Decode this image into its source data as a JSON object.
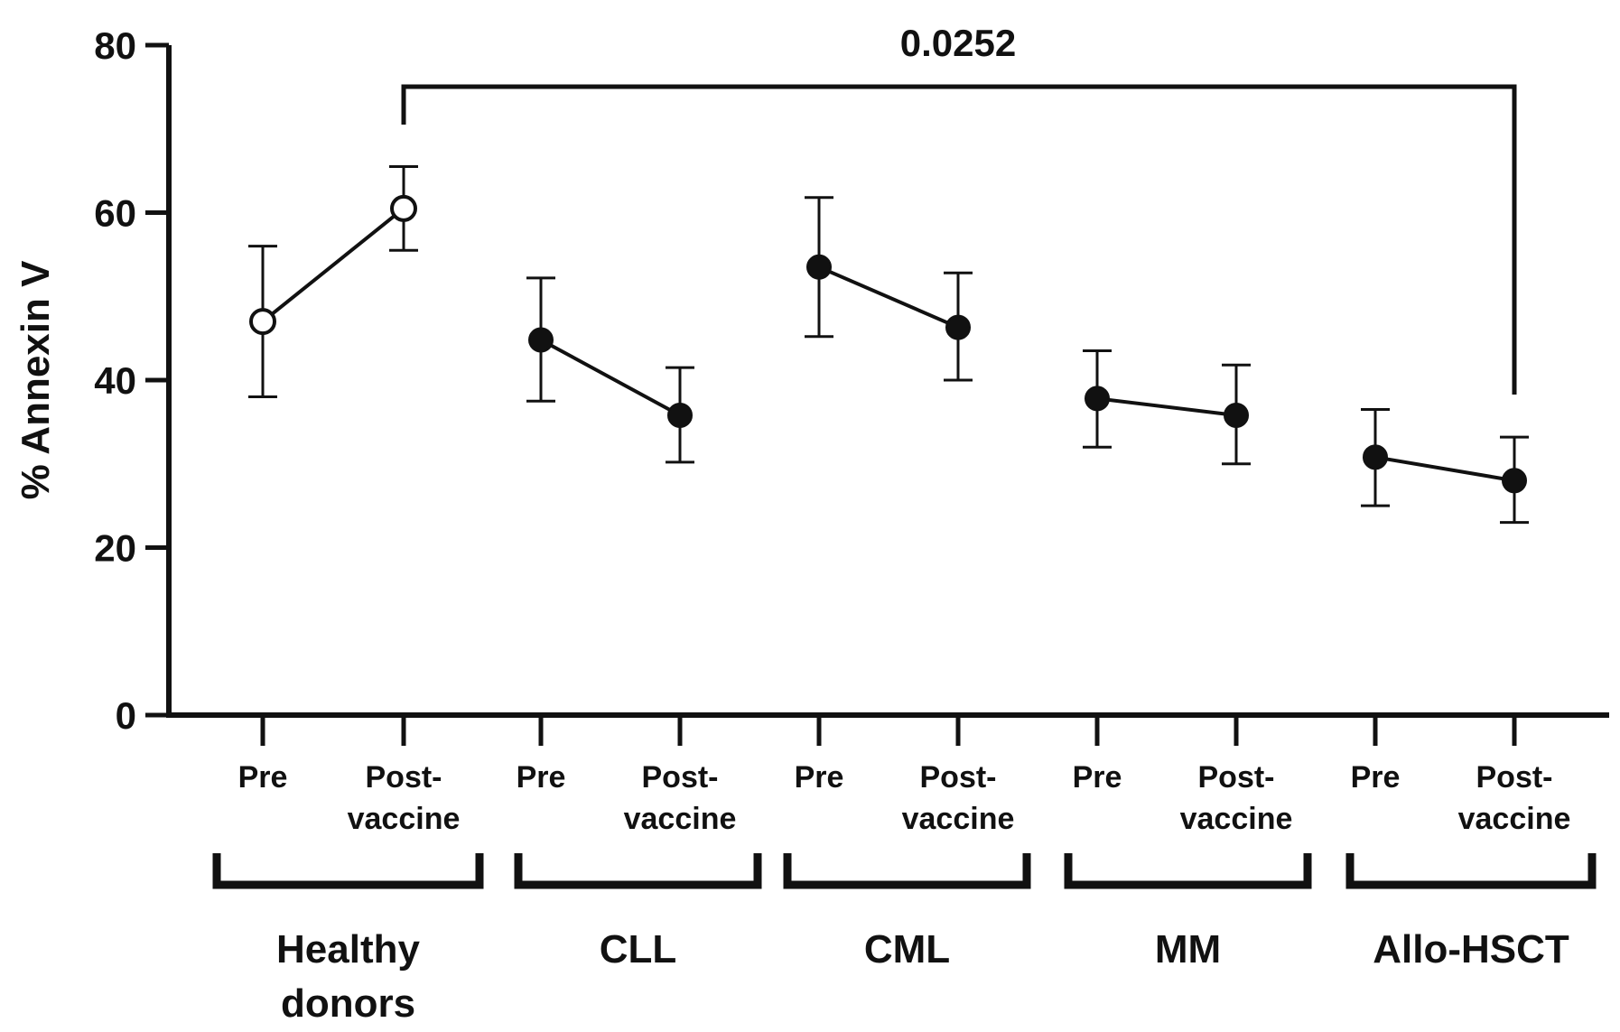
{
  "chart_data": {
    "type": "line",
    "ylabel": "% Annexin V",
    "ylim": [
      0,
      80
    ],
    "yticks": [
      0,
      20,
      40,
      60,
      80
    ],
    "timepoint_labels": [
      {
        "line1": "Pre",
        "line2": ""
      },
      {
        "line1": "Post-",
        "line2": "vaccine"
      }
    ],
    "groups": [
      {
        "name_lines": [
          "Healthy",
          "donors"
        ],
        "marker": "open",
        "points": [
          {
            "mean": 47,
            "err_low": 38,
            "err_high": 56
          },
          {
            "mean": 60.5,
            "err_low": 55.5,
            "err_high": 65.5
          }
        ]
      },
      {
        "name_lines": [
          "CLL"
        ],
        "marker": "filled",
        "points": [
          {
            "mean": 44.8,
            "err_low": 37.5,
            "err_high": 52.2
          },
          {
            "mean": 35.8,
            "err_low": 30.2,
            "err_high": 41.5
          }
        ]
      },
      {
        "name_lines": [
          "CML"
        ],
        "marker": "filled",
        "points": [
          {
            "mean": 53.5,
            "err_low": 45.2,
            "err_high": 61.8
          },
          {
            "mean": 46.3,
            "err_low": 40,
            "err_high": 52.8
          }
        ]
      },
      {
        "name_lines": [
          "MM"
        ],
        "marker": "filled",
        "points": [
          {
            "mean": 37.8,
            "err_low": 32,
            "err_high": 43.5
          },
          {
            "mean": 35.8,
            "err_low": 30,
            "err_high": 41.8
          }
        ]
      },
      {
        "name_lines": [
          "Allo-HSCT"
        ],
        "marker": "filled",
        "points": [
          {
            "mean": 30.8,
            "err_low": 25,
            "err_high": 36.5
          },
          {
            "mean": 28,
            "err_low": 23,
            "err_high": 33.2
          }
        ]
      }
    ],
    "significance": {
      "label": "0.0252",
      "from": {
        "group": 0,
        "timepoint": 1
      },
      "to": {
        "group": 4,
        "timepoint": 1
      }
    }
  }
}
